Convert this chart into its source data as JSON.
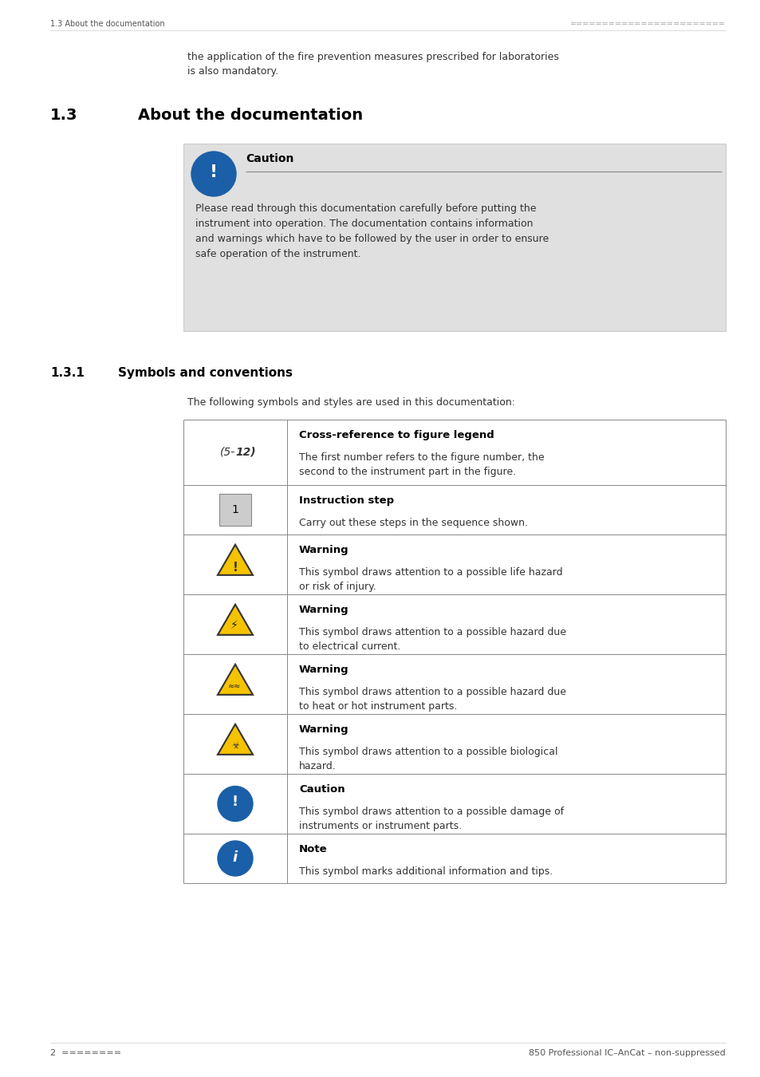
{
  "page_width": 9.54,
  "page_height": 13.5,
  "bg_color": "#ffffff",
  "header_text_left": "1.3 About the documentation",
  "header_dots": "========================",
  "footer_left": "2  ========",
  "footer_right": "850 Professional IC–AnCat – non-suppressed",
  "intro_text": "the application of the fire prevention measures prescribed for laboratories\nis also mandatory.",
  "section_title": "1.3    About the documentation",
  "caution_box_bg": "#e0e0e0",
  "caution_title": "Caution",
  "caution_text": "Please read through this documentation carefully before putting the\ninstrument into operation. The documentation contains information\nand warnings which have to be followed by the user in order to ensure\nsafe operation of the instrument.",
  "subsection_title": "1.3.1    Symbols and conventions",
  "subsection_intro": "The following symbols and styles are used in this documentation:",
  "table_rows": [
    {
      "symbol_type": "cross_ref",
      "symbol_text": "(5-12)",
      "title": "Cross-reference to figure legend",
      "description": "The first number refers to the figure number, the\nsecond to the instrument part in the figure."
    },
    {
      "symbol_type": "number_box",
      "symbol_text": "1",
      "title": "Instruction step",
      "description": "Carry out these steps in the sequence shown."
    },
    {
      "symbol_type": "warning_general",
      "symbol_text": "",
      "title": "Warning",
      "description": "This symbol draws attention to a possible life hazard\nor risk of injury."
    },
    {
      "symbol_type": "warning_electric",
      "symbol_text": "",
      "title": "Warning",
      "description": "This symbol draws attention to a possible hazard due\nto electrical current."
    },
    {
      "symbol_type": "warning_heat",
      "symbol_text": "",
      "title": "Warning",
      "description": "This symbol draws attention to a possible hazard due\nto heat or hot instrument parts."
    },
    {
      "symbol_type": "warning_bio",
      "symbol_text": "",
      "title": "Warning",
      "description": "This symbol draws attention to a possible biological\nhazard."
    },
    {
      "symbol_type": "caution_blue",
      "symbol_text": "",
      "title": "Caution",
      "description": "This symbol draws attention to a possible damage of\ninstruments or instrument parts."
    },
    {
      "symbol_type": "note_blue",
      "symbol_text": "",
      "title": "Note",
      "description": "This symbol marks additional information and tips."
    }
  ]
}
